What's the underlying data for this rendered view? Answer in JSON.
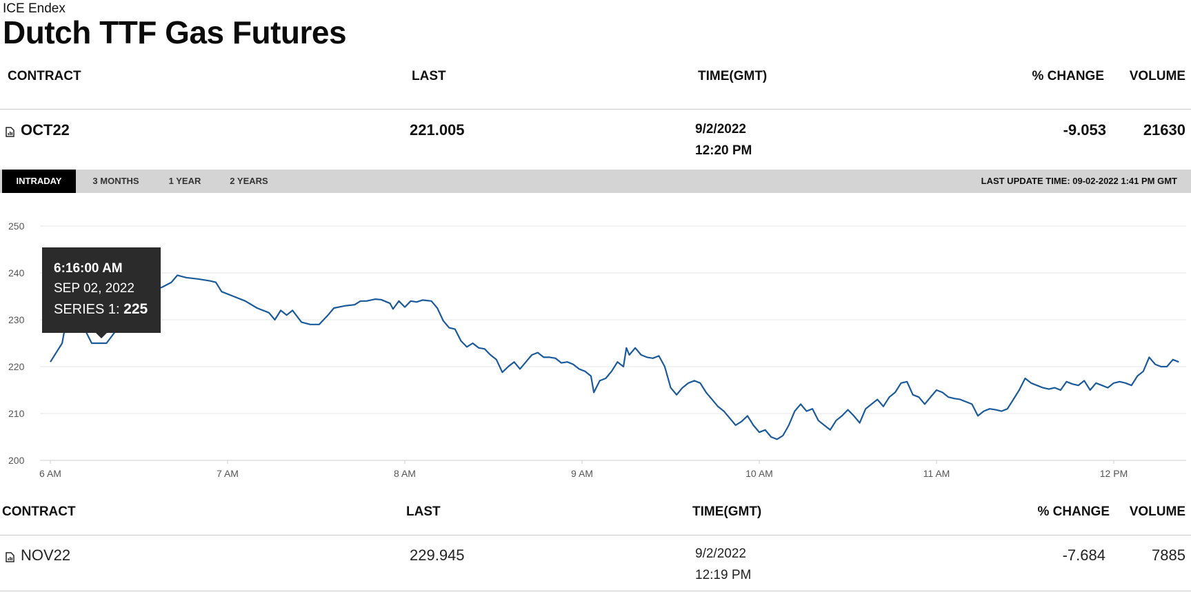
{
  "header": {
    "exchange": "ICE Endex",
    "title": "Dutch TTF Gas Futures"
  },
  "table_headers": {
    "contract": "CONTRACT",
    "last": "LAST",
    "time": "TIME(GMT)",
    "change": "% CHANGE",
    "volume": "VOLUME"
  },
  "rows": [
    {
      "contract": "OCT22",
      "last": "221.005",
      "date": "9/2/2022",
      "time": "12:20 PM",
      "change": "-9.053",
      "volume": "21630",
      "icon": "bar-chart-icon"
    },
    {
      "contract": "NOV22",
      "last": "229.945",
      "date": "9/2/2022",
      "time": "12:19 PM",
      "change": "-7.684",
      "volume": "7885",
      "icon": "bar-chart-icon"
    }
  ],
  "tabs": [
    "INTRADAY",
    "3 MONTHS",
    "1 YEAR",
    "2 YEARS"
  ],
  "active_tab": "INTRADAY",
  "last_update": "LAST UPDATE TIME: 09-02-2022 1:41 PM GMT",
  "tooltip": {
    "time": "6:16:00 AM",
    "date": "SEP 02, 2022",
    "series_label": "SERIES 1:",
    "series_value": "225"
  },
  "colors": {
    "line": "#1a5a9a",
    "active_tab_bg": "#000000",
    "tabbar_bg": "#d4d4d4",
    "grid": "#e6e6e6"
  },
  "chart_data": {
    "type": "line",
    "series": [
      {
        "name": "SERIES 1",
        "points": [
          [
            "6:00",
            221.0
          ],
          [
            "6:04",
            225.0
          ],
          [
            "6:06",
            232.0
          ],
          [
            "6:09",
            233.0
          ],
          [
            "6:12",
            227.5
          ],
          [
            "6:14",
            225.0
          ],
          [
            "6:16",
            225.0
          ],
          [
            "6:19",
            225.0
          ],
          [
            "6:22",
            227.5
          ],
          [
            "6:26",
            231.5
          ],
          [
            "6:30",
            234.0
          ],
          [
            "6:34",
            236.0
          ],
          [
            "6:38",
            237.0
          ],
          [
            "6:41",
            238.0
          ],
          [
            "6:43",
            239.5
          ],
          [
            "6:46",
            239.0
          ],
          [
            "6:50",
            238.7
          ],
          [
            "6:54",
            238.3
          ],
          [
            "6:56",
            238.0
          ],
          [
            "6:58",
            236.0
          ],
          [
            "7:02",
            235.0
          ],
          [
            "7:06",
            234.0
          ],
          [
            "7:10",
            232.5
          ],
          [
            "7:14",
            231.5
          ],
          [
            "7:16",
            230.0
          ],
          [
            "7:18",
            232.0
          ],
          [
            "7:20",
            231.0
          ],
          [
            "7:22",
            232.0
          ],
          [
            "7:25",
            229.5
          ],
          [
            "7:28",
            229.0
          ],
          [
            "7:31",
            229.0
          ],
          [
            "7:34",
            231.0
          ],
          [
            "7:36",
            232.5
          ],
          [
            "7:40",
            233.0
          ],
          [
            "7:43",
            233.2
          ],
          [
            "7:45",
            234.0
          ],
          [
            "7:47",
            234.0
          ],
          [
            "7:50",
            234.4
          ],
          [
            "7:52",
            234.3
          ],
          [
            "7:55",
            233.5
          ],
          [
            "7:56",
            232.3
          ],
          [
            "7:58",
            234.0
          ],
          [
            "8:00",
            232.7
          ],
          [
            "8:02",
            234.0
          ],
          [
            "8:04",
            233.8
          ],
          [
            "8:06",
            234.2
          ],
          [
            "8:09",
            234.0
          ],
          [
            "8:11",
            232.5
          ],
          [
            "8:13",
            229.8
          ],
          [
            "8:15",
            228.3
          ],
          [
            "8:17",
            228.0
          ],
          [
            "8:19",
            225.5
          ],
          [
            "8:21",
            224.2
          ],
          [
            "8:23",
            225.0
          ],
          [
            "8:25",
            224.0
          ],
          [
            "8:27",
            223.8
          ],
          [
            "8:29",
            222.5
          ],
          [
            "8:31",
            221.5
          ],
          [
            "8:33",
            218.8
          ],
          [
            "8:35",
            220.0
          ],
          [
            "8:37",
            221.0
          ],
          [
            "8:39",
            219.5
          ],
          [
            "8:41",
            221.0
          ],
          [
            "8:43",
            222.5
          ],
          [
            "8:45",
            223.0
          ],
          [
            "8:47",
            222.0
          ],
          [
            "8:49",
            222.0
          ],
          [
            "8:51",
            221.8
          ],
          [
            "8:53",
            220.8
          ],
          [
            "8:55",
            221.0
          ],
          [
            "8:57",
            220.5
          ],
          [
            "8:59",
            219.5
          ],
          [
            "9:01",
            219.0
          ],
          [
            "9:03",
            218.0
          ],
          [
            "9:04",
            214.5
          ],
          [
            "9:06",
            217.0
          ],
          [
            "9:08",
            217.5
          ],
          [
            "9:10",
            219.0
          ],
          [
            "9:12",
            221.0
          ],
          [
            "9:14",
            220.0
          ],
          [
            "9:15",
            224.0
          ],
          [
            "9:16",
            222.5
          ],
          [
            "9:18",
            224.0
          ],
          [
            "9:20",
            222.5
          ],
          [
            "9:22",
            222.0
          ],
          [
            "9:24",
            221.8
          ],
          [
            "9:26",
            222.3
          ],
          [
            "9:28",
            220.0
          ],
          [
            "9:30",
            215.5
          ],
          [
            "9:32",
            214.0
          ],
          [
            "9:34",
            215.5
          ],
          [
            "9:36",
            216.5
          ],
          [
            "9:38",
            217.0
          ],
          [
            "9:40",
            216.5
          ],
          [
            "9:42",
            214.5
          ],
          [
            "9:44",
            213.0
          ],
          [
            "9:46",
            211.5
          ],
          [
            "9:48",
            210.5
          ],
          [
            "9:50",
            209.0
          ],
          [
            "9:52",
            207.5
          ],
          [
            "9:54",
            208.3
          ],
          [
            "9:56",
            209.5
          ],
          [
            "9:58",
            207.5
          ],
          [
            "10:00",
            206.0
          ],
          [
            "10:02",
            206.5
          ],
          [
            "10:04",
            205.0
          ],
          [
            "10:06",
            204.5
          ],
          [
            "10:08",
            205.3
          ],
          [
            "10:10",
            207.5
          ],
          [
            "10:12",
            210.5
          ],
          [
            "10:14",
            212.0
          ],
          [
            "10:16",
            210.5
          ],
          [
            "10:18",
            211.0
          ],
          [
            "10:20",
            208.5
          ],
          [
            "10:22",
            207.5
          ],
          [
            "10:24",
            206.5
          ],
          [
            "10:26",
            208.5
          ],
          [
            "10:28",
            209.5
          ],
          [
            "10:30",
            210.8
          ],
          [
            "10:32",
            209.5
          ],
          [
            "10:34",
            208.0
          ],
          [
            "10:36",
            211.0
          ],
          [
            "10:38",
            212.0
          ],
          [
            "10:40",
            213.0
          ],
          [
            "10:42",
            211.5
          ],
          [
            "10:44",
            213.5
          ],
          [
            "10:46",
            214.5
          ],
          [
            "10:48",
            216.5
          ],
          [
            "10:50",
            216.8
          ],
          [
            "10:52",
            214.0
          ],
          [
            "10:54",
            213.5
          ],
          [
            "10:56",
            212.0
          ],
          [
            "10:58",
            213.5
          ],
          [
            "11:00",
            215.0
          ],
          [
            "11:02",
            214.5
          ],
          [
            "11:04",
            213.5
          ],
          [
            "11:06",
            213.2
          ],
          [
            "11:08",
            213.0
          ],
          [
            "11:10",
            212.5
          ],
          [
            "11:12",
            212.0
          ],
          [
            "11:14",
            209.5
          ],
          [
            "11:16",
            210.5
          ],
          [
            "11:18",
            211.0
          ],
          [
            "11:20",
            210.8
          ],
          [
            "11:22",
            210.5
          ],
          [
            "11:24",
            211.0
          ],
          [
            "11:26",
            213.0
          ],
          [
            "11:28",
            215.0
          ],
          [
            "11:30",
            217.5
          ],
          [
            "11:32",
            216.5
          ],
          [
            "11:34",
            216.0
          ],
          [
            "11:36",
            215.5
          ],
          [
            "11:38",
            215.2
          ],
          [
            "11:40",
            215.5
          ],
          [
            "11:42",
            215.0
          ],
          [
            "11:44",
            216.8
          ],
          [
            "11:46",
            216.3
          ],
          [
            "11:48",
            216.0
          ],
          [
            "11:50",
            217.0
          ],
          [
            "11:52",
            215.0
          ],
          [
            "11:54",
            216.5
          ],
          [
            "11:56",
            216.0
          ],
          [
            "11:58",
            215.5
          ],
          [
            "12:00",
            216.5
          ],
          [
            "12:02",
            216.8
          ],
          [
            "12:04",
            216.5
          ],
          [
            "12:06",
            216.0
          ],
          [
            "12:08",
            218.0
          ],
          [
            "12:10",
            219.0
          ],
          [
            "12:12",
            222.0
          ],
          [
            "12:14",
            220.5
          ],
          [
            "12:16",
            220.0
          ],
          [
            "12:18",
            220.0
          ],
          [
            "12:20",
            221.5
          ],
          [
            "12:22",
            221.0
          ]
        ]
      }
    ],
    "x_ticks": [
      "6 AM",
      "7 AM",
      "8 AM",
      "9 AM",
      "10 AM",
      "11 AM",
      "12 PM"
    ],
    "y_ticks": [
      200,
      210,
      220,
      230,
      240,
      250
    ],
    "ylim": [
      200,
      250
    ],
    "xlim": [
      "6:00",
      "12:22"
    ],
    "grid": "horizontal",
    "highlight": {
      "x": "6:16",
      "y": 225
    }
  }
}
